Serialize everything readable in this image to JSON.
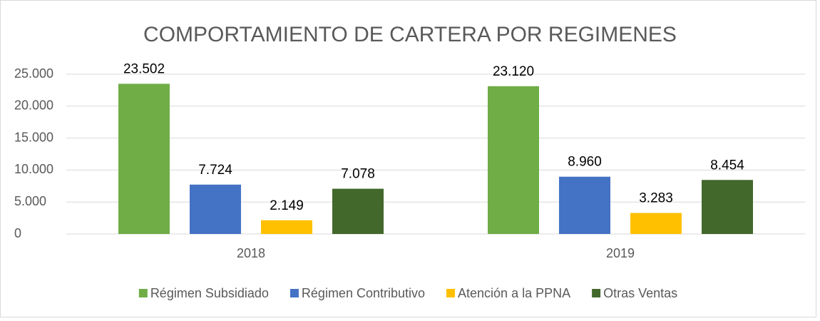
{
  "chart_data": {
    "type": "bar",
    "title": "COMPORTAMIENTO DE CARTERA POR REGIMENES",
    "categories": [
      "2018",
      "2019"
    ],
    "series": [
      {
        "name": "Régimen Subsidiado",
        "color": "#70ad47",
        "values": [
          23502,
          23120
        ],
        "value_labels": [
          "23.502",
          "23.120"
        ]
      },
      {
        "name": "Régimen Contributivo",
        "color": "#4472c4",
        "values": [
          7724,
          8960
        ],
        "value_labels": [
          "7.724",
          "8.960"
        ]
      },
      {
        "name": "Atención a la PPNA",
        "color": "#ffc000",
        "values": [
          2149,
          3283
        ],
        "value_labels": [
          "2.149",
          "3.283"
        ]
      },
      {
        "name": "Otras Ventas",
        "color": "#43682b",
        "values": [
          7078,
          8454
        ],
        "value_labels": [
          "7.078",
          "8.454"
        ]
      }
    ],
    "ylim": [
      0,
      25000
    ],
    "yticks": [
      0,
      {
        "value": 5000,
        "label": "5.000"
      },
      {
        "value": 10000,
        "label": "10.000"
      },
      {
        "value": 15000,
        "label": "15.000"
      },
      {
        "value": 20000,
        "label": "20.000"
      },
      {
        "value": 25000,
        "label": "25.000"
      }
    ],
    "grid": true,
    "legend": "bottom"
  }
}
